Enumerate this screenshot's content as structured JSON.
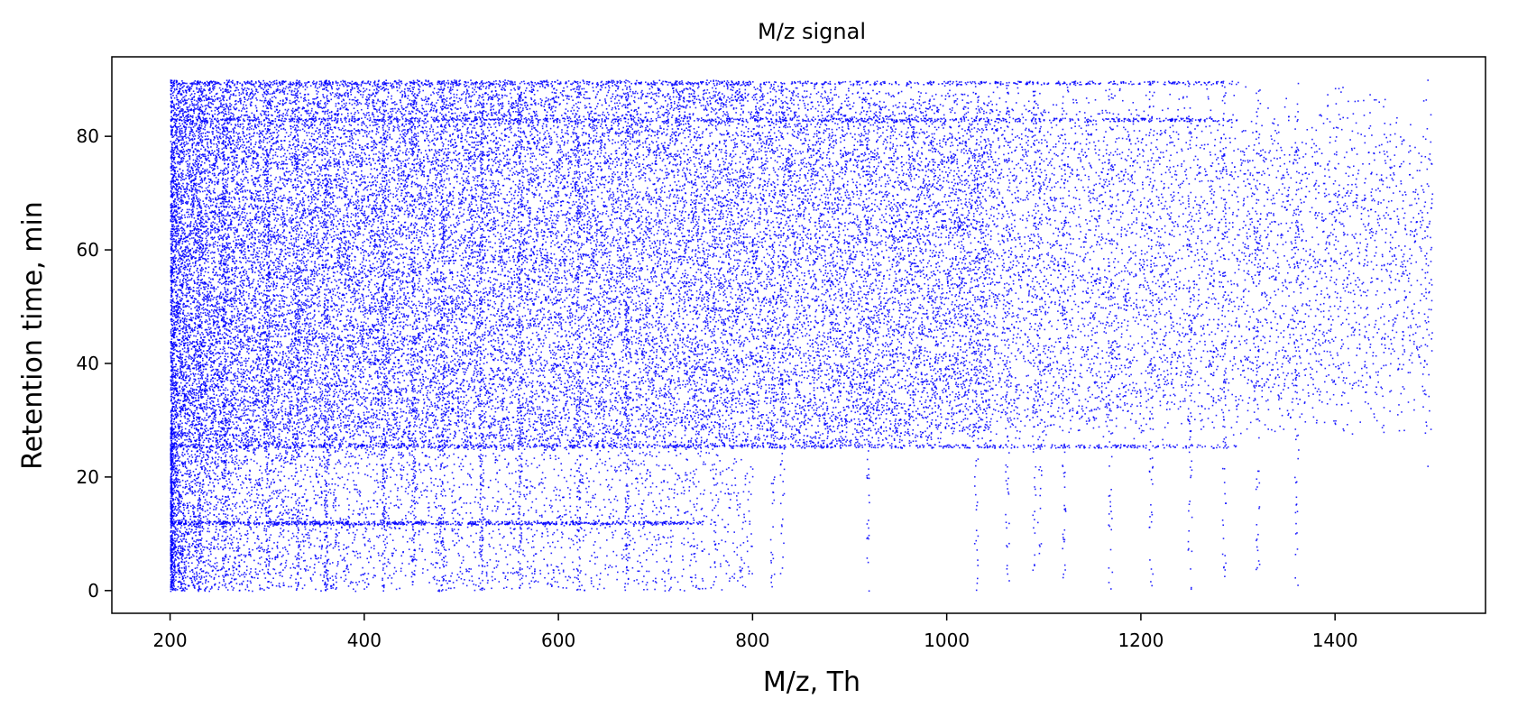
{
  "chart_data": {
    "type": "scatter",
    "title": "M/z signal",
    "xlabel": "M/z, Th",
    "ylabel": "Retention time, min",
    "xlim": [
      140,
      1555
    ],
    "ylim": [
      -4,
      94
    ],
    "xticks": [
      200,
      400,
      600,
      800,
      1000,
      1200,
      1400
    ],
    "yticks": [
      0,
      20,
      40,
      60,
      80
    ],
    "grid": false,
    "legend": "none",
    "marker_color": "#0000ff",
    "series": [
      {
        "values_description_free": true,
        "points_sample": [
          [
            200,
            0
          ],
          [
            200,
            90
          ],
          [
            300,
            45
          ],
          [
            400,
            60
          ],
          [
            500,
            30
          ],
          [
            600,
            75
          ],
          [
            700,
            50
          ],
          [
            800,
            40
          ],
          [
            900,
            65
          ],
          [
            1000,
            55
          ],
          [
            1100,
            70
          ],
          [
            1200,
            60
          ],
          [
            1320,
            10
          ],
          [
            1320,
            85
          ],
          [
            1400,
            30
          ],
          [
            1495,
            90
          ],
          [
            1495,
            22
          ]
        ]
      }
    ],
    "vertical_streaks_mz": [
      200,
      230,
      255,
      300,
      330,
      360,
      420,
      450,
      480,
      520,
      560,
      620,
      670,
      740,
      760,
      820,
      830,
      918,
      1030,
      1062,
      1090,
      1095,
      1120,
      1168,
      1210,
      1250,
      1285,
      1320,
      1360
    ],
    "horizontal_bands_rt": [
      12,
      25.5,
      83,
      89.5
    ]
  }
}
